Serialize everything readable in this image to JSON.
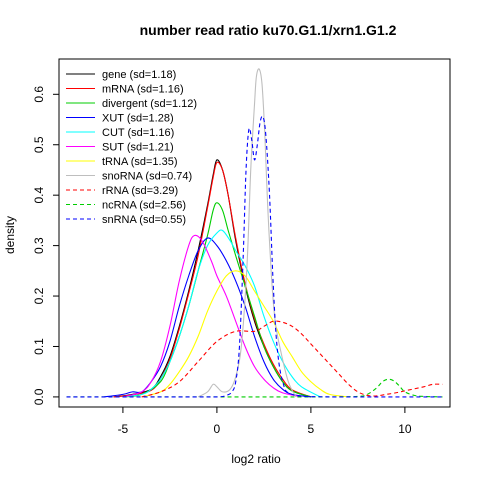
{
  "chart_data": {
    "type": "line",
    "title": "number read ratio ku70.G1.1/xrn1.G1.2",
    "xlabel": "log2 ratio",
    "ylabel": "density",
    "xlim": [
      -8.4,
      12.4
    ],
    "ylim": [
      -0.02,
      0.67
    ],
    "xticks": [
      -5,
      0,
      5,
      10
    ],
    "yticks": [
      0.0,
      0.1,
      0.2,
      0.3,
      0.4,
      0.5,
      0.6
    ],
    "ytick_labels": [
      "0.0",
      "0.1",
      "0.2",
      "0.3",
      "0.4",
      "0.5",
      "0.6"
    ],
    "legend_position": "top-left",
    "series": [
      {
        "name": "gene (sd=1.18)",
        "color": "#000000",
        "dash": "solid",
        "x": [
          -5.5,
          -4.5,
          -3.5,
          -3,
          -2.5,
          -2,
          -1.5,
          -1,
          -0.5,
          -0.2,
          0,
          0.3,
          0.6,
          1,
          1.5,
          2,
          2.5,
          3,
          3.5,
          4,
          5
        ],
        "y": [
          0,
          0.005,
          0.015,
          0.04,
          0.08,
          0.14,
          0.21,
          0.29,
          0.38,
          0.44,
          0.47,
          0.45,
          0.4,
          0.31,
          0.22,
          0.15,
          0.1,
          0.06,
          0.03,
          0.012,
          0
        ]
      },
      {
        "name": "mRNA (sd=1.16)",
        "color": "#ff0000",
        "dash": "solid",
        "x": [
          -5.5,
          -4.5,
          -3.5,
          -3,
          -2.5,
          -2,
          -1.5,
          -1,
          -0.5,
          -0.2,
          0,
          0.3,
          0.6,
          1,
          1.5,
          2,
          2.5,
          3,
          3.5,
          4,
          5
        ],
        "y": [
          0,
          0.004,
          0.013,
          0.035,
          0.075,
          0.135,
          0.205,
          0.28,
          0.375,
          0.435,
          0.465,
          0.45,
          0.4,
          0.315,
          0.225,
          0.155,
          0.105,
          0.065,
          0.035,
          0.014,
          0
        ]
      },
      {
        "name": "divergent (sd=1.12)",
        "color": "#00cd00",
        "dash": "solid",
        "x": [
          -5,
          -4,
          -3,
          -2.5,
          -2,
          -1.5,
          -1,
          -0.5,
          -0.2,
          0,
          0.3,
          0.6,
          1,
          1.5,
          2,
          2.5,
          3,
          3.5,
          4,
          5
        ],
        "y": [
          0,
          0.005,
          0.03,
          0.07,
          0.12,
          0.18,
          0.25,
          0.32,
          0.37,
          0.385,
          0.37,
          0.33,
          0.28,
          0.22,
          0.16,
          0.1,
          0.06,
          0.03,
          0.012,
          0
        ]
      },
      {
        "name": "XUT (sd=1.28)",
        "color": "#0000ff",
        "dash": "solid",
        "x": [
          -6,
          -5,
          -4.5,
          -4,
          -3.5,
          -3,
          -2.5,
          -2,
          -1.5,
          -1,
          -0.5,
          0,
          0.5,
          1,
          1.5,
          2,
          2.5,
          3,
          3.5,
          4,
          5
        ],
        "y": [
          0,
          0.005,
          0.01,
          0.01,
          0.03,
          0.06,
          0.11,
          0.18,
          0.24,
          0.29,
          0.315,
          0.3,
          0.27,
          0.23,
          0.18,
          0.12,
          0.07,
          0.035,
          0.015,
          0.005,
          0
        ]
      },
      {
        "name": "CUT (sd=1.16)",
        "color": "#00ffff",
        "dash": "solid",
        "x": [
          -5,
          -4,
          -3.5,
          -3,
          -2.5,
          -2,
          -1.5,
          -1,
          -0.5,
          0,
          0.3,
          0.7,
          1,
          1.5,
          2,
          2.5,
          3,
          3.5,
          4,
          4.5,
          5.5
        ],
        "y": [
          0,
          0.005,
          0.015,
          0.035,
          0.07,
          0.12,
          0.18,
          0.25,
          0.3,
          0.325,
          0.33,
          0.31,
          0.29,
          0.26,
          0.22,
          0.16,
          0.11,
          0.07,
          0.04,
          0.02,
          0
        ]
      },
      {
        "name": "SUT (sd=1.21)",
        "color": "#ff00ff",
        "dash": "solid",
        "x": [
          -5,
          -4,
          -3.5,
          -3,
          -2.5,
          -2,
          -1.5,
          -1.2,
          -0.8,
          -0.3,
          0,
          0.5,
          1,
          1.5,
          2,
          2.5,
          3,
          3.5,
          4.5
        ],
        "y": [
          0,
          0.01,
          0.03,
          0.07,
          0.14,
          0.23,
          0.3,
          0.32,
          0.31,
          0.27,
          0.24,
          0.2,
          0.15,
          0.1,
          0.06,
          0.035,
          0.018,
          0.008,
          0
        ]
      },
      {
        "name": "tRNA (sd=1.35)",
        "color": "#ffff00",
        "dash": "solid",
        "x": [
          -4,
          -3,
          -2.5,
          -2,
          -1.5,
          -1,
          -0.5,
          0,
          0.5,
          1,
          1.5,
          2,
          2.5,
          3,
          3.5,
          4,
          4.5,
          5,
          5.5,
          6,
          7
        ],
        "y": [
          0,
          0.01,
          0.025,
          0.05,
          0.08,
          0.12,
          0.17,
          0.21,
          0.24,
          0.25,
          0.24,
          0.21,
          0.18,
          0.15,
          0.11,
          0.08,
          0.05,
          0.03,
          0.015,
          0.005,
          0
        ]
      },
      {
        "name": "snoRNA (sd=0.74)",
        "color": "#bebebe",
        "dash": "solid",
        "x": [
          -1,
          -0.5,
          -0.2,
          0,
          0.3,
          0.7,
          1,
          1.3,
          1.6,
          1.8,
          2,
          2.1,
          2.25,
          2.4,
          2.55,
          2.7,
          2.9,
          3.1,
          3.4,
          3.8,
          4.2
        ],
        "y": [
          0,
          0.01,
          0.025,
          0.02,
          0.01,
          0.015,
          0.04,
          0.1,
          0.26,
          0.45,
          0.58,
          0.635,
          0.65,
          0.62,
          0.52,
          0.38,
          0.24,
          0.15,
          0.09,
          0.03,
          0
        ]
      },
      {
        "name": "rRNA (sd=3.29)",
        "color": "#ff0000",
        "dash": "dashed",
        "x": [
          -4,
          -3,
          -2,
          -1,
          0,
          1,
          2,
          2.5,
          3,
          3.5,
          4,
          4.5,
          5,
          5.5,
          6,
          6.5,
          7,
          7.5,
          8,
          8.5,
          9,
          9.5,
          10,
          10.5,
          11,
          11.5,
          12
        ],
        "y": [
          0,
          0.01,
          0.03,
          0.07,
          0.11,
          0.13,
          0.13,
          0.14,
          0.15,
          0.148,
          0.14,
          0.125,
          0.105,
          0.085,
          0.065,
          0.045,
          0.025,
          0.01,
          0.003,
          0.002,
          0.005,
          0.008,
          0.012,
          0.016,
          0.02,
          0.025,
          0.025
        ]
      },
      {
        "name": "ncRNA (sd=2.56)",
        "color": "#00cd00",
        "dash": "dashed",
        "x": [
          -8,
          -5,
          -2,
          0,
          2,
          4,
          6,
          7.5,
          8,
          8.5,
          8.8,
          9.1,
          9.4,
          9.7,
          10,
          10.5,
          11,
          12
        ],
        "y": [
          0,
          0,
          0,
          0,
          0,
          0,
          0,
          0.001,
          0.005,
          0.018,
          0.03,
          0.035,
          0.032,
          0.022,
          0.01,
          0.003,
          0.001,
          0
        ]
      },
      {
        "name": "snRNA (sd=0.55)",
        "color": "#0000ff",
        "dash": "dashed",
        "x": [
          -8,
          -2,
          0,
          0.5,
          0.8,
          1,
          1.2,
          1.4,
          1.55,
          1.7,
          1.85,
          2,
          2.15,
          2.3,
          2.45,
          2.6,
          2.8,
          3,
          3.2,
          3.5,
          4,
          6,
          12
        ],
        "y": [
          0,
          0,
          0,
          0.003,
          0.01,
          0.03,
          0.1,
          0.28,
          0.45,
          0.53,
          0.51,
          0.47,
          0.5,
          0.545,
          0.555,
          0.52,
          0.4,
          0.22,
          0.1,
          0.03,
          0.005,
          0,
          0
        ]
      }
    ]
  }
}
